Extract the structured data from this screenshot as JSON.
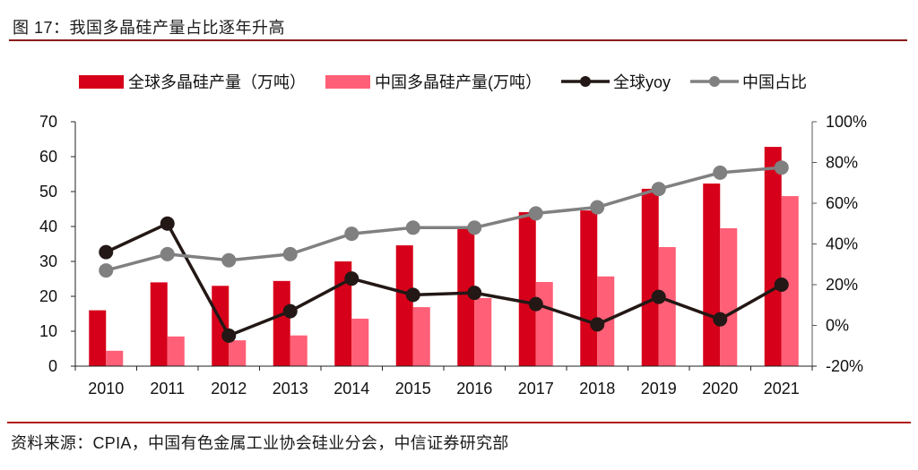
{
  "header": {
    "title": "图 17：我国多晶硅产量占比逐年升高"
  },
  "footer": {
    "source": "资料来源：CPIA，中国有色金属工业协会硅业分会，中信证券研究部"
  },
  "chart_data": {
    "type": "bar",
    "title": "图 17：我国多晶硅产量占比逐年升高",
    "categories": [
      "2010",
      "2011",
      "2012",
      "2013",
      "2014",
      "2015",
      "2016",
      "2017",
      "2018",
      "2019",
      "2020",
      "2021"
    ],
    "series": [
      {
        "name": "全球多晶硅产量（万吨）",
        "type": "bar",
        "axis": "left",
        "color": "#d7001a",
        "values": [
          16,
          24,
          23,
          24.4,
          30,
          34.6,
          39.7,
          44.1,
          44.6,
          50.8,
          52.3,
          62.8
        ]
      },
      {
        "name": "中国多晶硅产量(万吨）",
        "type": "bar",
        "axis": "left",
        "color": "#ff5f77",
        "values": [
          4.4,
          8.5,
          7.4,
          8.8,
          13.6,
          16.9,
          19.5,
          24.1,
          25.7,
          34.1,
          39.5,
          48.7
        ]
      },
      {
        "name": "全球yoy",
        "type": "line",
        "axis": "right",
        "color": "#231815",
        "values": [
          36,
          50,
          -5,
          7,
          23,
          15,
          16,
          10.5,
          0.5,
          14,
          3,
          20
        ]
      },
      {
        "name": "中国占比",
        "type": "line",
        "axis": "right",
        "color": "#808080",
        "values": [
          27,
          35,
          32,
          35,
          45,
          48,
          48,
          55,
          58,
          67,
          75,
          77.5
        ]
      }
    ],
    "left_axis": {
      "ylim": [
        0,
        70
      ],
      "ticks": [
        "0",
        "10",
        "20",
        "30",
        "40",
        "50",
        "60",
        "70"
      ],
      "tick_values": [
        0,
        10,
        20,
        30,
        40,
        50,
        60,
        70
      ]
    },
    "right_axis": {
      "ylim": [
        -20,
        100
      ],
      "ticks": [
        "-20%",
        "0%",
        "20%",
        "40%",
        "60%",
        "80%",
        "100%"
      ],
      "tick_values": [
        -20,
        0,
        20,
        40,
        60,
        80,
        100
      ],
      "unit": "%"
    },
    "xlabel": "",
    "ylabel": "",
    "grid": false,
    "legend": "top"
  }
}
